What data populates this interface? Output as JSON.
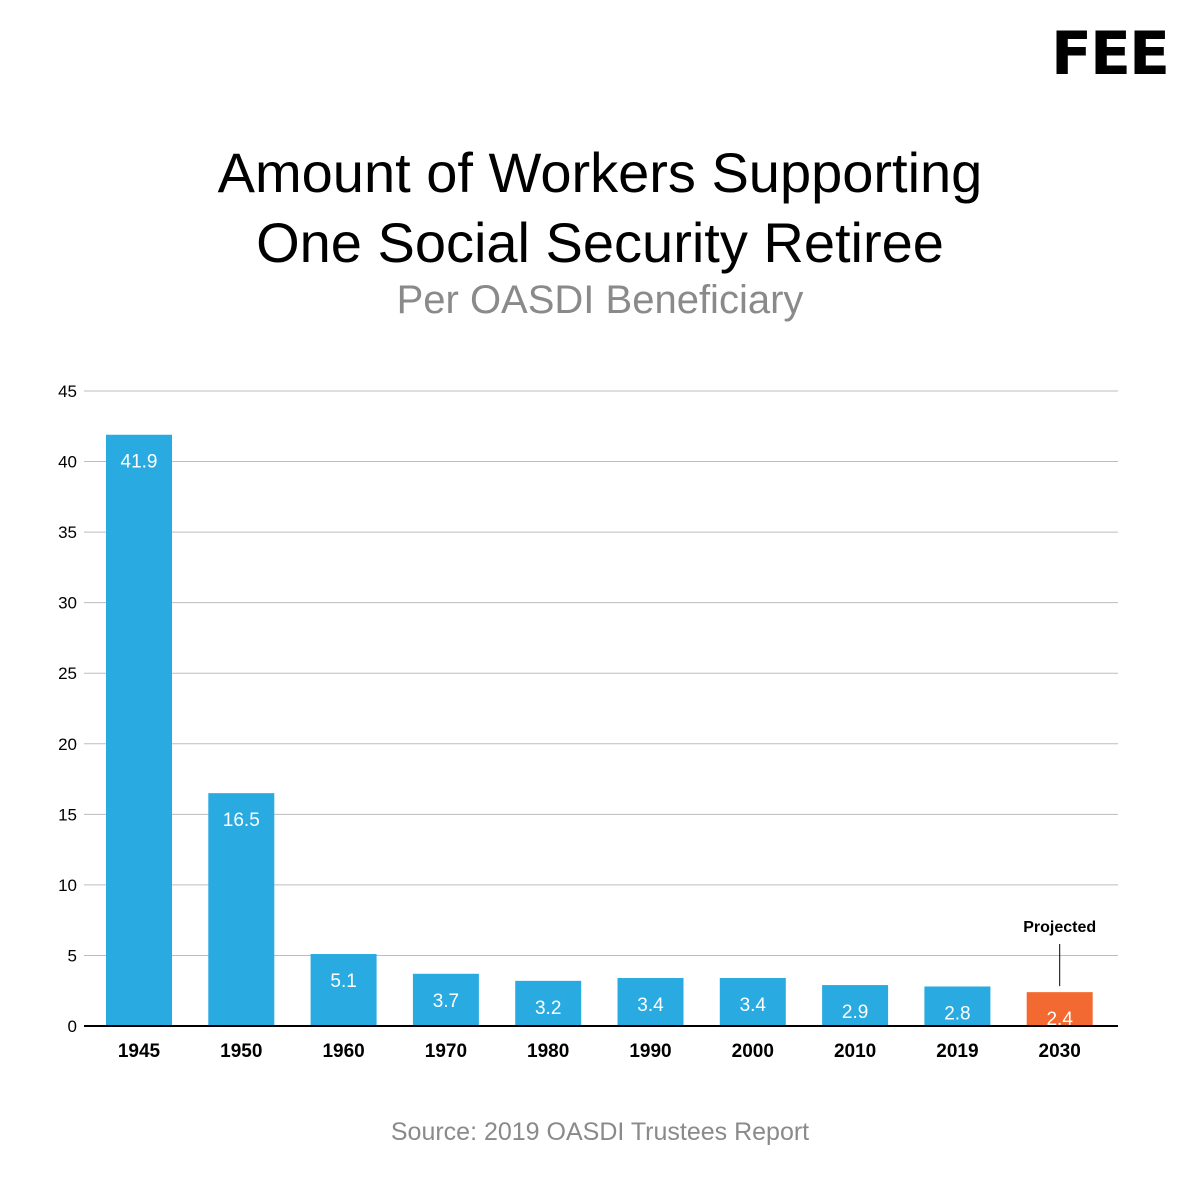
{
  "logo": "FEE",
  "title_line1": "Amount of Workers Supporting",
  "title_line2": "One Social Security Retiree",
  "subtitle": "Per OASDI Beneficiary",
  "source": "Source: 2019 OASDI Trustees Report",
  "annotation": "Projected",
  "colors": {
    "bar": "#29abe2",
    "projected": "#f26a32",
    "grid": "#bdbdbd",
    "axis": "#000000"
  },
  "chart_data": {
    "type": "bar",
    "categories": [
      "1945",
      "1950",
      "1960",
      "1970",
      "1980",
      "1990",
      "2000",
      "2010",
      "2019",
      "2030"
    ],
    "values": [
      41.9,
      16.5,
      5.1,
      3.7,
      3.2,
      3.4,
      3.4,
      2.9,
      2.8,
      2.4
    ],
    "data_labels": [
      "41.9",
      "16.5",
      "5.1",
      "3.7",
      "3.2",
      "3.4",
      "3.4",
      "2.9",
      "2.8",
      "2.4"
    ],
    "projected_index": 9,
    "yticks": [
      0,
      5,
      10,
      15,
      20,
      25,
      30,
      35,
      40,
      45
    ],
    "ylim": [
      0,
      45
    ],
    "grid": true,
    "legend": "none"
  }
}
